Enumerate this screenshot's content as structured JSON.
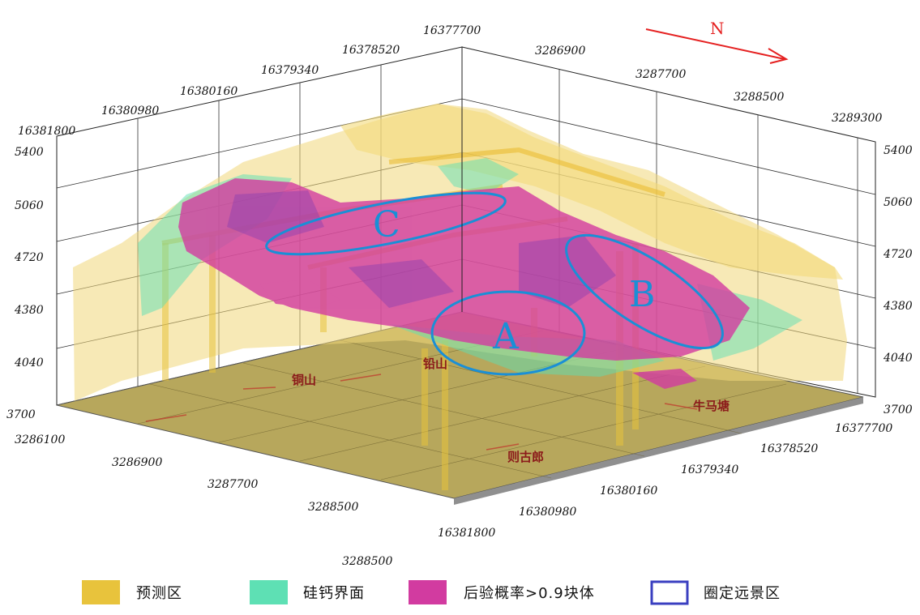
{
  "north": {
    "label": "N"
  },
  "axes": {
    "top_x_ticks": [
      "16381800",
      "16380980",
      "16380160",
      "16379340",
      "16378520",
      "16377700"
    ],
    "top_y_ticks": [
      "3286900",
      "3287700",
      "3288500",
      "3289300"
    ],
    "left_z_ticks": [
      "5400",
      "5060",
      "4720",
      "4380",
      "4040",
      "3700"
    ],
    "right_z_ticks": [
      "5400",
      "5060",
      "4720",
      "4380",
      "4040",
      "3700"
    ],
    "bottom_y_ticks": [
      "3286100",
      "3286900",
      "3287700",
      "3288500",
      "3288500"
    ],
    "bottom_x_ticks": [
      "16377700",
      "16378520",
      "16379340",
      "16380160",
      "16380980",
      "16381800"
    ]
  },
  "places": [
    "铜山",
    "铅山",
    "牛马塘",
    "则古郎"
  ],
  "zones": [
    "A",
    "B",
    "C"
  ],
  "legend": [
    {
      "label": "预测区",
      "color": "#e8c33c"
    },
    {
      "label": "硅钙界面",
      "color": "#5ee0b4"
    },
    {
      "label": "后验概率>0.9块体",
      "color": "#d23ba0"
    },
    {
      "label": "圈定远景区",
      "color": "#3a3fc0"
    }
  ]
}
